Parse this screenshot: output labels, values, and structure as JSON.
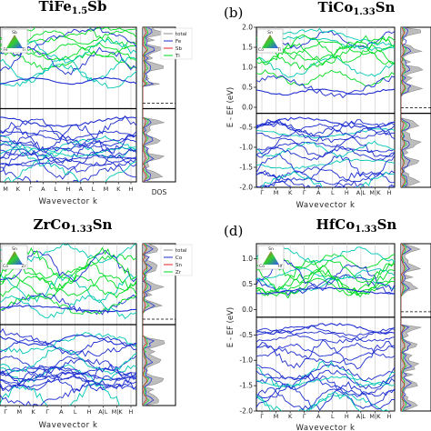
{
  "figure": {
    "colors": {
      "green": "#00dd22",
      "cyan": "#00c8b4",
      "blue": "#1e2ed0",
      "red": "#e02020",
      "gray": "#8c8c8c",
      "frame": "#000000"
    }
  },
  "chart_data": [
    {
      "id": "a",
      "panel_label": "",
      "title_parts": [
        [
          "TiFe",
          "n"
        ],
        [
          "1.5",
          "s"
        ],
        [
          "Sb",
          "n"
        ]
      ],
      "title": "TiFe1.5Sb",
      "type": "line",
      "xlabel": "Wavevector k",
      "ylabel": "",
      "y_ticks": [],
      "ylim": [
        -2.0,
        2.0
      ],
      "x_ticks": [
        "M",
        "K",
        "Γ",
        "A",
        "L",
        "H",
        "A",
        "L",
        "M",
        "K",
        "H"
      ],
      "dos_xlabel": "DOS",
      "legend": [
        "total",
        "Fe",
        "Sb",
        "Ti"
      ],
      "triangle_labels": [
        "Sb",
        "Fe",
        "Ti"
      ],
      "gap": [
        0.0,
        0.2
      ],
      "fermi_line": 0.1
    },
    {
      "id": "b",
      "panel_label": "(b)",
      "title_parts": [
        [
          "TiCo",
          "n"
        ],
        [
          "1.33",
          "s"
        ],
        [
          "Sn",
          "n"
        ]
      ],
      "title": "TiCo1.33Sn",
      "type": "line",
      "xlabel": "Wavevector k",
      "ylabel": "E - EF (eV)",
      "y_ticks": [
        "2.0",
        "1.5",
        "1.0",
        "0.5",
        "0.0",
        "-0.5",
        "-1.0",
        "-1.5",
        "-2.0"
      ],
      "ylim": [
        -2.0,
        2.0
      ],
      "x_ticks": [
        "Γ",
        "M",
        "K",
        "Γ",
        "A",
        "L",
        "H",
        "A|L",
        "M|K",
        "H"
      ],
      "dos_xlabel": "",
      "legend": [],
      "triangle_labels": [
        "Sn",
        "Co",
        "Ti"
      ],
      "gap": [
        0.0,
        0.0
      ],
      "fermi_line": -0.15
    },
    {
      "id": "c",
      "panel_label": "",
      "title_parts": [
        [
          "ZrCo",
          "n"
        ],
        [
          "1.33",
          "s"
        ],
        [
          "Sn",
          "n"
        ]
      ],
      "title": "ZrCo1.33Sn",
      "type": "line",
      "xlabel": "Wavevector k",
      "ylabel": "",
      "y_ticks": [],
      "ylim": [
        -2.0,
        2.0
      ],
      "x_ticks": [
        "Γ",
        "M",
        "K",
        "Γ",
        "A",
        "L",
        "H",
        "A|L",
        "M|K",
        "H"
      ],
      "dos_xlabel": "",
      "legend": [
        "total",
        "Co",
        "Sn",
        "Zr"
      ],
      "triangle_labels": [
        "Sn",
        "Co",
        "Zr"
      ],
      "gap": [
        0.0,
        0.0
      ],
      "fermi_line": 0.0
    },
    {
      "id": "d",
      "panel_label": "(d)",
      "title_parts": [
        [
          "HfCo",
          "n"
        ],
        [
          "1.33",
          "s"
        ],
        [
          "Sn",
          "n"
        ]
      ],
      "title": "HfCo1.33Sn",
      "type": "line",
      "xlabel": "Wavevector k",
      "ylabel": "E - EF (eV)",
      "y_ticks": [
        "1.0",
        "0.5",
        "0.0",
        "-0.5",
        "-1.0",
        "-1.5",
        "-2.0"
      ],
      "ylim": [
        -2.0,
        1.3
      ],
      "x_ticks": [
        "Γ",
        "M",
        "K",
        "Γ",
        "A",
        "L",
        "H",
        "A|L",
        "M|K",
        "H"
      ],
      "dos_xlabel": "",
      "legend": [],
      "triangle_labels": [
        "Sn",
        "Co",
        "Hf"
      ],
      "gap": [
        0.0,
        0.0
      ],
      "fermi_line": -0.15
    }
  ]
}
